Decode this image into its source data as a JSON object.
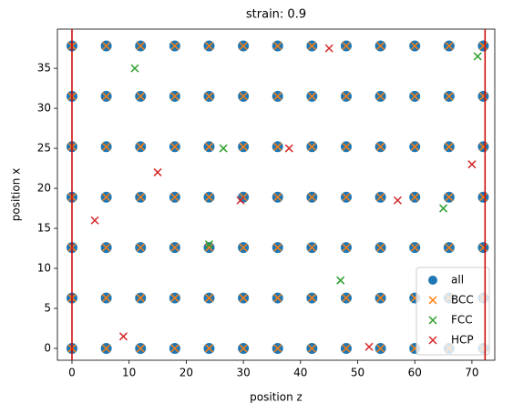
{
  "chart_data": {
    "type": "scatter",
    "title": "strain: 0.9",
    "x_label": "position z",
    "y_label": "position x",
    "xlim": [
      -2.55,
      74.0
    ],
    "ylim": [
      -1.48,
      39.9
    ],
    "xticks": [
      0,
      10,
      20,
      30,
      40,
      50,
      60,
      70
    ],
    "yticks": [
      0,
      5,
      10,
      15,
      20,
      25,
      30,
      35
    ],
    "legend": "lower right",
    "vlines": {
      "color": "#cc0000",
      "x": [
        0,
        72.3
      ]
    },
    "series": [
      {
        "name": "all",
        "color": "#1f77b4",
        "marker": "o",
        "x": [
          0,
          6,
          12,
          18,
          24,
          30,
          36,
          42,
          48,
          54,
          60,
          66,
          72,
          0,
          6,
          12,
          18,
          24,
          30,
          36,
          42,
          48,
          54,
          60,
          66,
          72,
          0,
          6,
          12,
          18,
          24,
          30,
          36,
          42,
          48,
          54,
          60,
          66,
          72,
          0,
          6,
          12,
          18,
          24,
          30,
          36,
          42,
          48,
          54,
          60,
          66,
          72,
          0,
          6,
          12,
          18,
          24,
          30,
          36,
          42,
          48,
          54,
          60,
          66,
          72,
          0,
          6,
          12,
          18,
          24,
          30,
          36,
          42,
          48,
          54,
          60,
          66,
          72,
          0,
          6,
          12,
          18,
          24,
          30,
          36,
          42,
          48,
          54,
          60,
          66,
          72
        ],
        "y": [
          0,
          0,
          0,
          0,
          0,
          0,
          0,
          0,
          0,
          0,
          0,
          0,
          0,
          6.3,
          6.3,
          6.3,
          6.3,
          6.3,
          6.3,
          6.3,
          6.3,
          6.3,
          6.3,
          6.3,
          6.3,
          6.3,
          12.6,
          12.6,
          12.6,
          12.6,
          12.6,
          12.6,
          12.6,
          12.6,
          12.6,
          12.6,
          12.6,
          12.6,
          12.6,
          18.9,
          18.9,
          18.9,
          18.9,
          18.9,
          18.9,
          18.9,
          18.9,
          18.9,
          18.9,
          18.9,
          18.9,
          18.9,
          25.2,
          25.2,
          25.2,
          25.2,
          25.2,
          25.2,
          25.2,
          25.2,
          25.2,
          25.2,
          25.2,
          25.2,
          25.2,
          31.5,
          31.5,
          31.5,
          31.5,
          31.5,
          31.5,
          31.5,
          31.5,
          31.5,
          31.5,
          31.5,
          31.5,
          31.5,
          37.8,
          37.8,
          37.8,
          37.8,
          37.8,
          37.8,
          37.8,
          37.8,
          37.8,
          37.8,
          37.8,
          37.8,
          37.8
        ]
      },
      {
        "name": "BCC",
        "color": "#ff7f0e",
        "marker": "x",
        "x": [
          0,
          6,
          12,
          18,
          24,
          30,
          36,
          42,
          48,
          54,
          60,
          66,
          72,
          0,
          6,
          12,
          18,
          24,
          30,
          36,
          42,
          48,
          54,
          60,
          66,
          72,
          0,
          6,
          12,
          18,
          24,
          30,
          36,
          42,
          48,
          54,
          60,
          66,
          72,
          0,
          6,
          12,
          18,
          24,
          30,
          36,
          42,
          48,
          54,
          60,
          66,
          72,
          0,
          6,
          12,
          18,
          24,
          30,
          36,
          42,
          48,
          54,
          60,
          66,
          72,
          0,
          6,
          12,
          18,
          24,
          30,
          36,
          42,
          48,
          54,
          60,
          66,
          72,
          0,
          6,
          12,
          18,
          24,
          30,
          36,
          42,
          48,
          54,
          60,
          66,
          72
        ],
        "y": [
          0,
          0,
          0,
          0,
          0,
          0,
          0,
          0,
          0,
          0,
          0,
          0,
          0,
          6.3,
          6.3,
          6.3,
          6.3,
          6.3,
          6.3,
          6.3,
          6.3,
          6.3,
          6.3,
          6.3,
          6.3,
          6.3,
          12.6,
          12.6,
          12.6,
          12.6,
          12.6,
          12.6,
          12.6,
          12.6,
          12.6,
          12.6,
          12.6,
          12.6,
          12.6,
          18.9,
          18.9,
          18.9,
          18.9,
          18.9,
          18.9,
          18.9,
          18.9,
          18.9,
          18.9,
          18.9,
          18.9,
          18.9,
          25.2,
          25.2,
          25.2,
          25.2,
          25.2,
          25.2,
          25.2,
          25.2,
          25.2,
          25.2,
          25.2,
          25.2,
          25.2,
          31.5,
          31.5,
          31.5,
          31.5,
          31.5,
          31.5,
          31.5,
          31.5,
          31.5,
          31.5,
          31.5,
          31.5,
          31.5,
          37.8,
          37.8,
          37.8,
          37.8,
          37.8,
          37.8,
          37.8,
          37.8,
          37.8,
          37.8,
          37.8,
          37.8,
          37.8
        ]
      },
      {
        "name": "FCC",
        "color": "#2ca02c",
        "marker": "x",
        "x": [
          11,
          26.5,
          24,
          65,
          47,
          71
        ],
        "y": [
          35,
          25,
          13,
          17.5,
          8.5,
          36.5
        ]
      },
      {
        "name": "HCP",
        "color": "#d62728",
        "marker": "x",
        "x": [
          45,
          4,
          38,
          70,
          52,
          9,
          29.5,
          15,
          57
        ],
        "y": [
          37.5,
          16,
          25,
          23,
          0.2,
          1.5,
          18.5,
          22,
          18.5
        ]
      }
    ]
  }
}
